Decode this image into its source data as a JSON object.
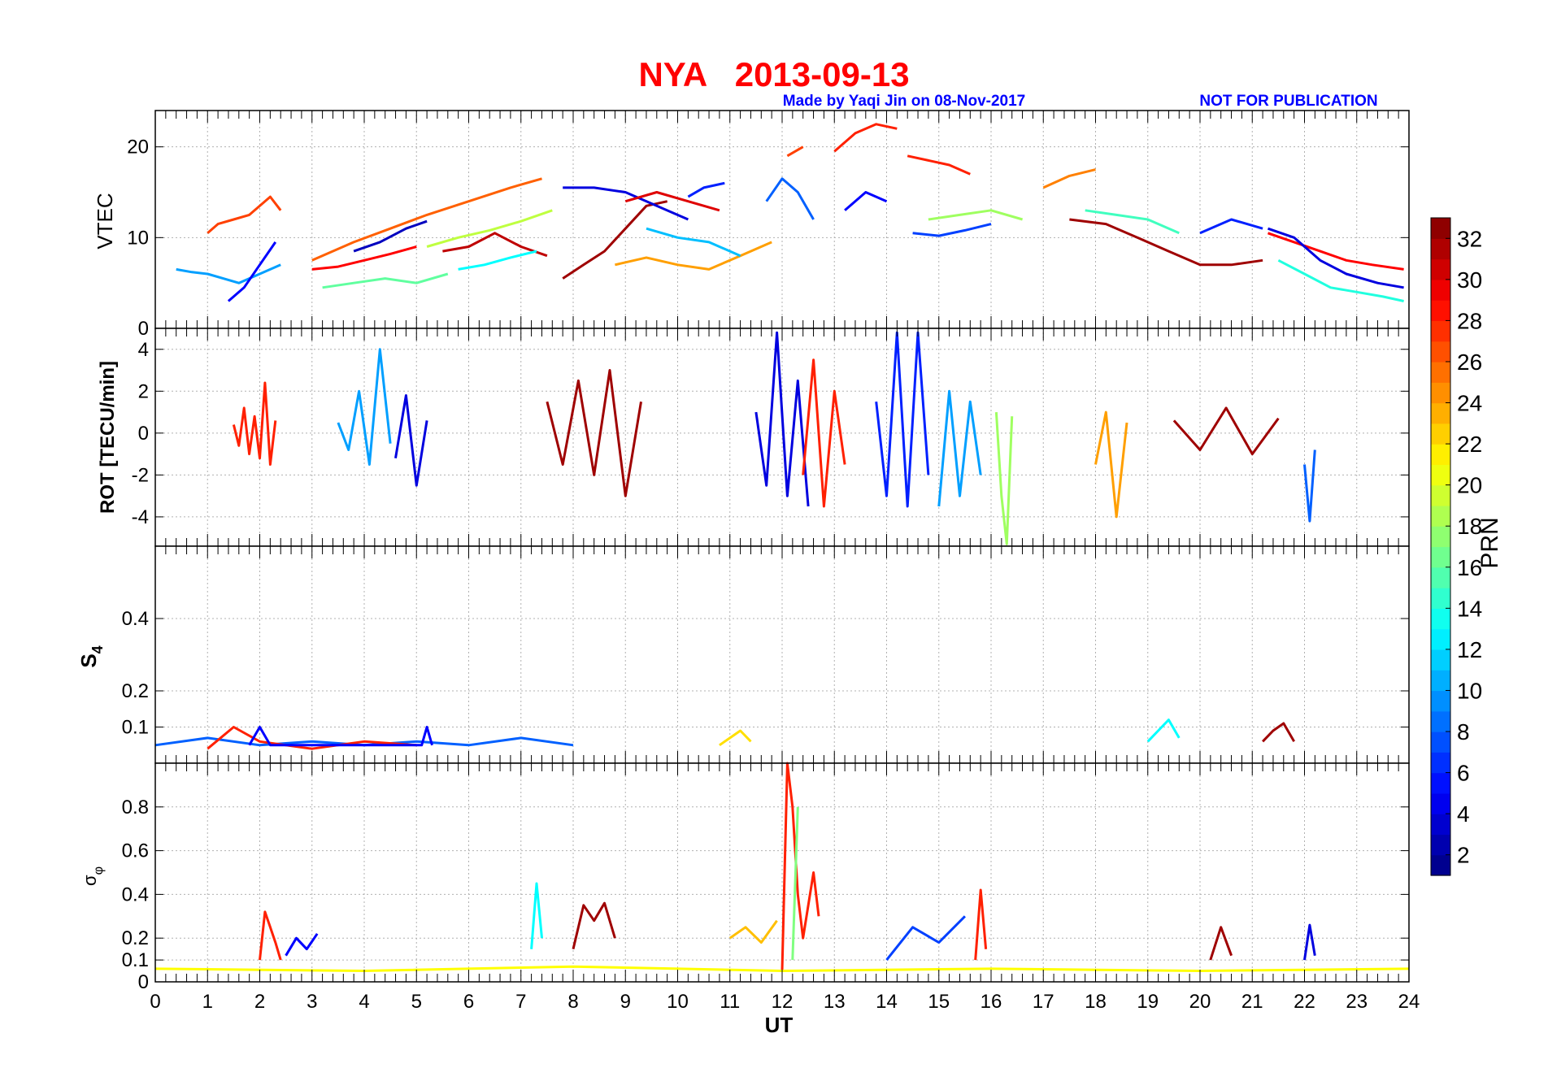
{
  "header": {
    "title": "NYA   2013-09-13",
    "credit": "Made by Yaqi Jin on 08-Nov-2017",
    "notice": "NOT FOR PUBLICATION",
    "title_color": "#ff0000",
    "credit_color": "#0000ff"
  },
  "chart_data": [
    {
      "type": "line",
      "panel": "vtec",
      "ylabel": "VTEC",
      "ylim": [
        0,
        24
      ],
      "yticks": [
        0,
        10,
        20
      ],
      "xlim": [
        0,
        24
      ],
      "grid": true,
      "series": [
        {
          "prn": 27,
          "x": [
            1.0,
            1.2,
            1.5,
            1.8,
            2.0,
            2.2,
            2.4
          ],
          "y": [
            10.5,
            11.5,
            12.0,
            12.5,
            13.5,
            14.5,
            13.0
          ]
        },
        {
          "prn": 10,
          "x": [
            0.4,
            0.7,
            1.0,
            1.3,
            1.6,
            2.0,
            2.4
          ],
          "y": [
            6.5,
            6.2,
            6.0,
            5.5,
            5.0,
            6.0,
            7.0
          ]
        },
        {
          "prn": 5,
          "x": [
            1.4,
            1.7,
            2.0,
            2.3
          ],
          "y": [
            3.0,
            4.5,
            7.0,
            9.5
          ]
        },
        {
          "prn": 26,
          "x": [
            3.0,
            3.8,
            4.5,
            5.2,
            6.0,
            6.8,
            7.4
          ],
          "y": [
            7.5,
            9.5,
            11.0,
            12.5,
            14.0,
            15.5,
            16.5
          ]
        },
        {
          "prn": 29,
          "x": [
            3.0,
            3.5,
            4.0,
            4.5,
            5.0
          ],
          "y": [
            6.5,
            6.8,
            7.5,
            8.2,
            9.0
          ]
        },
        {
          "prn": 16,
          "x": [
            3.2,
            3.8,
            4.4,
            5.0,
            5.6
          ],
          "y": [
            4.5,
            5.0,
            5.5,
            5.0,
            6.0
          ]
        },
        {
          "prn": 3,
          "x": [
            3.8,
            4.3,
            4.8,
            5.2
          ],
          "y": [
            8.5,
            9.5,
            11.0,
            11.8
          ]
        },
        {
          "prn": 19,
          "x": [
            5.2,
            5.8,
            6.4,
            7.0,
            7.6
          ],
          "y": [
            9.0,
            10.0,
            10.8,
            11.8,
            13.0
          ]
        },
        {
          "prn": 31,
          "x": [
            5.5,
            6.0,
            6.5,
            7.0,
            7.5
          ],
          "y": [
            8.5,
            9.0,
            10.5,
            9.0,
            8.0
          ]
        },
        {
          "prn": 13,
          "x": [
            5.8,
            6.3,
            6.8,
            7.3
          ],
          "y": [
            6.5,
            7.0,
            7.8,
            8.5
          ]
        },
        {
          "prn": 32,
          "x": [
            7.8,
            8.2,
            8.6,
            9.0,
            9.4,
            9.8
          ],
          "y": [
            5.5,
            7.0,
            8.5,
            11.0,
            13.5,
            14.0
          ]
        },
        {
          "prn": 4,
          "x": [
            7.8,
            8.4,
            9.0,
            9.6,
            10.2
          ],
          "y": [
            15.5,
            15.5,
            15.0,
            13.5,
            12.0
          ]
        },
        {
          "prn": 30,
          "x": [
            9.0,
            9.6,
            10.2,
            10.8
          ],
          "y": [
            14.0,
            15.0,
            14.0,
            13.0
          ]
        },
        {
          "prn": 24,
          "x": [
            8.8,
            9.4,
            10.0,
            10.6,
            11.2,
            11.8
          ],
          "y": [
            7.0,
            7.8,
            7.0,
            6.5,
            8.0,
            9.5
          ]
        },
        {
          "prn": 11,
          "x": [
            9.4,
            10.0,
            10.6,
            11.2
          ],
          "y": [
            11.0,
            10.0,
            9.5,
            8.0
          ]
        },
        {
          "prn": 6,
          "x": [
            10.2,
            10.5,
            10.9
          ],
          "y": [
            14.5,
            15.5,
            16.0
          ]
        },
        {
          "prn": 8,
          "x": [
            11.7,
            12.0,
            12.3,
            12.6
          ],
          "y": [
            14.0,
            16.5,
            15.0,
            12.0
          ]
        },
        {
          "prn": 27,
          "x": [
            12.1,
            12.4
          ],
          "y": [
            19.0,
            20.0
          ]
        },
        {
          "prn": 28,
          "x": [
            13.0,
            13.4,
            13.8,
            14.2
          ],
          "y": [
            19.5,
            21.5,
            22.5,
            22.0
          ]
        },
        {
          "prn": 28,
          "x": [
            14.4,
            14.8,
            15.2,
            15.6
          ],
          "y": [
            19.0,
            18.5,
            18.0,
            17.0
          ]
        },
        {
          "prn": 5,
          "x": [
            13.2,
            13.6,
            14.0
          ],
          "y": [
            13.0,
            15.0,
            14.0
          ]
        },
        {
          "prn": 7,
          "x": [
            14.5,
            15.0,
            15.5,
            16.0
          ],
          "y": [
            10.5,
            10.2,
            10.8,
            11.5
          ]
        },
        {
          "prn": 18,
          "x": [
            14.8,
            15.4,
            16.0,
            16.6
          ],
          "y": [
            12.0,
            12.5,
            13.0,
            12.0
          ]
        },
        {
          "prn": 25,
          "x": [
            17.0,
            17.5,
            18.0
          ],
          "y": [
            15.5,
            16.8,
            17.5
          ]
        },
        {
          "prn": 32,
          "x": [
            17.5,
            18.2,
            18.8,
            19.4,
            20.0,
            20.6,
            21.2
          ],
          "y": [
            12.0,
            11.5,
            10.0,
            8.5,
            7.0,
            7.0,
            7.5
          ]
        },
        {
          "prn": 15,
          "x": [
            17.8,
            18.4,
            19.0,
            19.6
          ],
          "y": [
            13.0,
            12.5,
            12.0,
            10.5
          ]
        },
        {
          "prn": 6,
          "x": [
            20.0,
            20.6,
            21.2
          ],
          "y": [
            10.5,
            12.0,
            11.0
          ]
        },
        {
          "prn": 29,
          "x": [
            21.3,
            21.8,
            22.3,
            22.8,
            23.3,
            23.9
          ],
          "y": [
            10.5,
            9.5,
            8.5,
            7.5,
            7.0,
            6.5
          ]
        },
        {
          "prn": 4,
          "x": [
            21.3,
            21.8,
            22.3,
            22.8,
            23.4,
            23.9
          ],
          "y": [
            11.0,
            10.0,
            7.5,
            6.0,
            5.0,
            4.5
          ]
        },
        {
          "prn": 14,
          "x": [
            21.5,
            22.0,
            22.5,
            23.0,
            23.5,
            23.9
          ],
          "y": [
            7.5,
            6.0,
            4.5,
            4.0,
            3.5,
            3.0
          ]
        }
      ]
    },
    {
      "type": "line",
      "panel": "rot",
      "ylabel": "ROT [TECU/min]",
      "ylim": [
        -5.4,
        5.0
      ],
      "yticks": [
        -4,
        -2,
        0,
        2,
        4
      ],
      "xlim": [
        0,
        24
      ],
      "grid": true,
      "series": [
        {
          "prn": 28,
          "x": [
            1.5,
            1.6,
            1.7,
            1.8,
            1.9,
            2.0,
            2.1,
            2.2,
            2.3
          ],
          "y": [
            0.4,
            -0.6,
            1.2,
            -1.0,
            0.8,
            -1.2,
            2.4,
            -1.5,
            0.6
          ]
        },
        {
          "prn": 10,
          "x": [
            3.5,
            3.7,
            3.9,
            4.1,
            4.3,
            4.5
          ],
          "y": [
            0.5,
            -0.8,
            2.0,
            -1.5,
            4.0,
            -0.5
          ]
        },
        {
          "prn": 4,
          "x": [
            4.6,
            4.8,
            5.0,
            5.2
          ],
          "y": [
            -1.2,
            1.8,
            -2.5,
            0.6
          ]
        },
        {
          "prn": 32,
          "x": [
            7.5,
            7.8,
            8.1,
            8.4,
            8.7,
            9.0,
            9.3
          ],
          "y": [
            1.5,
            -1.5,
            2.5,
            -2.0,
            3.0,
            -3.0,
            1.5
          ]
        },
        {
          "prn": 4,
          "x": [
            11.5,
            11.7,
            11.9,
            12.1,
            12.3,
            12.5
          ],
          "y": [
            1.0,
            -2.5,
            4.8,
            -3.0,
            2.5,
            -3.5
          ]
        },
        {
          "prn": 28,
          "x": [
            12.4,
            12.6,
            12.8,
            13.0,
            13.2
          ],
          "y": [
            -2.0,
            3.5,
            -3.5,
            2.0,
            -1.5
          ]
        },
        {
          "prn": 6,
          "x": [
            13.8,
            14.0,
            14.2,
            14.4,
            14.6,
            14.8
          ],
          "y": [
            1.5,
            -3.0,
            4.8,
            -3.5,
            4.8,
            -2.0
          ]
        },
        {
          "prn": 10,
          "x": [
            15.0,
            15.2,
            15.4,
            15.6,
            15.8
          ],
          "y": [
            -3.5,
            2.0,
            -3.0,
            1.5,
            -2.0
          ]
        },
        {
          "prn": 18,
          "x": [
            16.1,
            16.2,
            16.3,
            16.4
          ],
          "y": [
            1.0,
            -3.0,
            -5.3,
            0.8
          ]
        },
        {
          "prn": 24,
          "x": [
            18.0,
            18.2,
            18.4,
            18.6
          ],
          "y": [
            -1.5,
            1.0,
            -4.0,
            0.5
          ]
        },
        {
          "prn": 32,
          "x": [
            19.5,
            20.0,
            20.5,
            21.0,
            21.5
          ],
          "y": [
            0.6,
            -0.8,
            1.2,
            -1.0,
            0.7
          ]
        },
        {
          "prn": 8,
          "x": [
            22.0,
            22.1,
            22.2
          ],
          "y": [
            -1.5,
            -4.2,
            -0.8
          ]
        }
      ]
    },
    {
      "type": "line",
      "panel": "s4",
      "ylabel": "S4",
      "ylim": [
        0,
        0.6
      ],
      "yticks": [
        0.1,
        0.2,
        0.4
      ],
      "xlim": [
        0,
        24
      ],
      "grid": true,
      "series": [
        {
          "prn": 8,
          "x": [
            0.0,
            1.0,
            2.0,
            3.0,
            4.0,
            5.0,
            6.0,
            7.0,
            8.0
          ],
          "y": [
            0.05,
            0.07,
            0.05,
            0.06,
            0.05,
            0.06,
            0.05,
            0.07,
            0.05
          ]
        },
        {
          "prn": 28,
          "x": [
            1.0,
            1.5,
            2.0,
            2.5,
            3.0,
            4.0,
            5.0
          ],
          "y": [
            0.04,
            0.1,
            0.06,
            0.05,
            0.04,
            0.06,
            0.05
          ]
        },
        {
          "prn": 5,
          "x": [
            1.8,
            2.0,
            2.2,
            5.1,
            5.2,
            5.3
          ],
          "y": [
            0.05,
            0.1,
            0.05,
            0.05,
            0.1,
            0.05
          ]
        },
        {
          "prn": 32,
          "x": [
            21.2,
            21.4,
            21.6,
            21.8
          ],
          "y": [
            0.06,
            0.09,
            0.11,
            0.06
          ]
        },
        {
          "prn": 13,
          "x": [
            19.0,
            19.2,
            19.4,
            19.6
          ],
          "y": [
            0.06,
            0.09,
            0.12,
            0.07
          ]
        },
        {
          "prn": 22,
          "x": [
            10.8,
            11.0,
            11.2,
            11.4
          ],
          "y": [
            0.05,
            0.07,
            0.09,
            0.06
          ]
        }
      ]
    },
    {
      "type": "line",
      "panel": "sigma_phi",
      "ylabel": "σφ",
      "ylim": [
        0,
        1.0
      ],
      "yticks": [
        0,
        0.1,
        0.2,
        0.4,
        0.6,
        0.8
      ],
      "xlim": [
        0,
        24
      ],
      "xlabel": "UT",
      "xticks": [
        0,
        1,
        2,
        3,
        4,
        5,
        6,
        7,
        8,
        9,
        10,
        11,
        12,
        13,
        14,
        15,
        16,
        17,
        18,
        19,
        20,
        21,
        22,
        23,
        24
      ],
      "grid": true,
      "series": [
        {
          "prn": 28,
          "x": [
            2.0,
            2.1,
            2.2,
            2.3,
            2.4
          ],
          "y": [
            0.1,
            0.32,
            0.25,
            0.18,
            0.1
          ]
        },
        {
          "prn": 5,
          "x": [
            2.5,
            2.7,
            2.9,
            3.1
          ],
          "y": [
            0.12,
            0.2,
            0.15,
            0.22
          ]
        },
        {
          "prn": 13,
          "x": [
            7.2,
            7.3,
            7.4
          ],
          "y": [
            0.15,
            0.45,
            0.2
          ]
        },
        {
          "prn": 32,
          "x": [
            8.0,
            8.2,
            8.4,
            8.6,
            8.8
          ],
          "y": [
            0.15,
            0.35,
            0.28,
            0.36,
            0.2
          ]
        },
        {
          "prn": 23,
          "x": [
            11.0,
            11.3,
            11.6,
            11.9
          ],
          "y": [
            0.2,
            0.25,
            0.18,
            0.28
          ]
        },
        {
          "prn": 28,
          "x": [
            12.0,
            12.1,
            12.2,
            12.3,
            12.4,
            12.6,
            12.7
          ],
          "y": [
            0.05,
            1.0,
            0.8,
            0.4,
            0.2,
            0.5,
            0.3
          ]
        },
        {
          "prn": 17,
          "x": [
            12.2,
            12.3
          ],
          "y": [
            0.1,
            0.8
          ]
        },
        {
          "prn": 7,
          "x": [
            14.0,
            14.5,
            15.0,
            15.5
          ],
          "y": [
            0.1,
            0.25,
            0.18,
            0.3
          ]
        },
        {
          "prn": 28,
          "x": [
            15.7,
            15.8,
            15.9
          ],
          "y": [
            0.1,
            0.42,
            0.15
          ]
        },
        {
          "prn": 32,
          "x": [
            20.2,
            20.4,
            20.6
          ],
          "y": [
            0.1,
            0.25,
            0.12
          ]
        },
        {
          "prn": 4,
          "x": [
            22.0,
            22.1,
            22.2
          ],
          "y": [
            0.1,
            0.26,
            0.12
          ]
        },
        {
          "prn": 21,
          "x": [
            0.0,
            4.0,
            8.0,
            12.0,
            16.0,
            20.0,
            24.0
          ],
          "y": [
            0.06,
            0.05,
            0.07,
            0.05,
            0.06,
            0.05,
            0.06
          ]
        }
      ]
    }
  ],
  "colorbar": {
    "label": "PRN",
    "range": [
      1,
      33
    ],
    "ticks": [
      "2",
      "4",
      "6",
      "8",
      "10",
      "12",
      "14",
      "16",
      "18",
      "20",
      "22",
      "24",
      "26",
      "28",
      "30",
      "32"
    ],
    "colormap": "jet"
  }
}
